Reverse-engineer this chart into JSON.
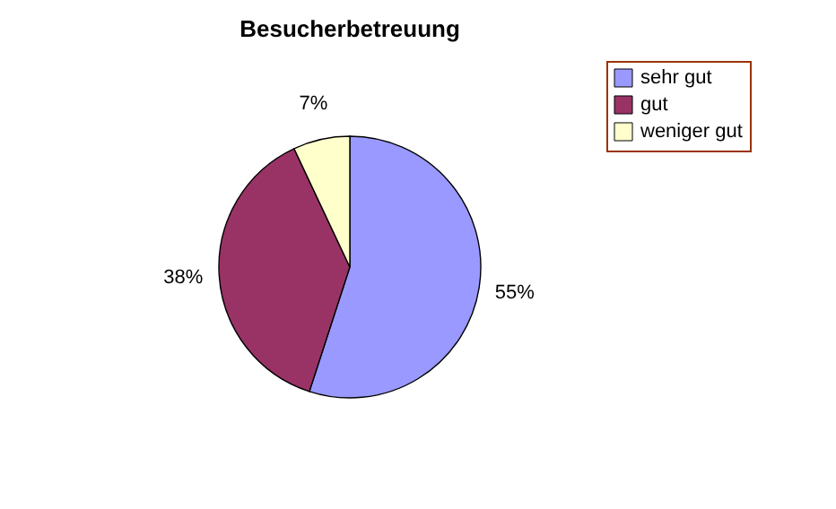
{
  "chart_data": {
    "type": "pie",
    "title": "Besucherbetreuung",
    "categories": [
      "sehr gut",
      "gut",
      "weniger gut"
    ],
    "values": [
      55,
      38,
      7
    ],
    "colors": [
      "#9999ff",
      "#993366",
      "#ffffcc"
    ],
    "value_labels": [
      "55%",
      "38%",
      "7%"
    ],
    "legend": "right"
  }
}
